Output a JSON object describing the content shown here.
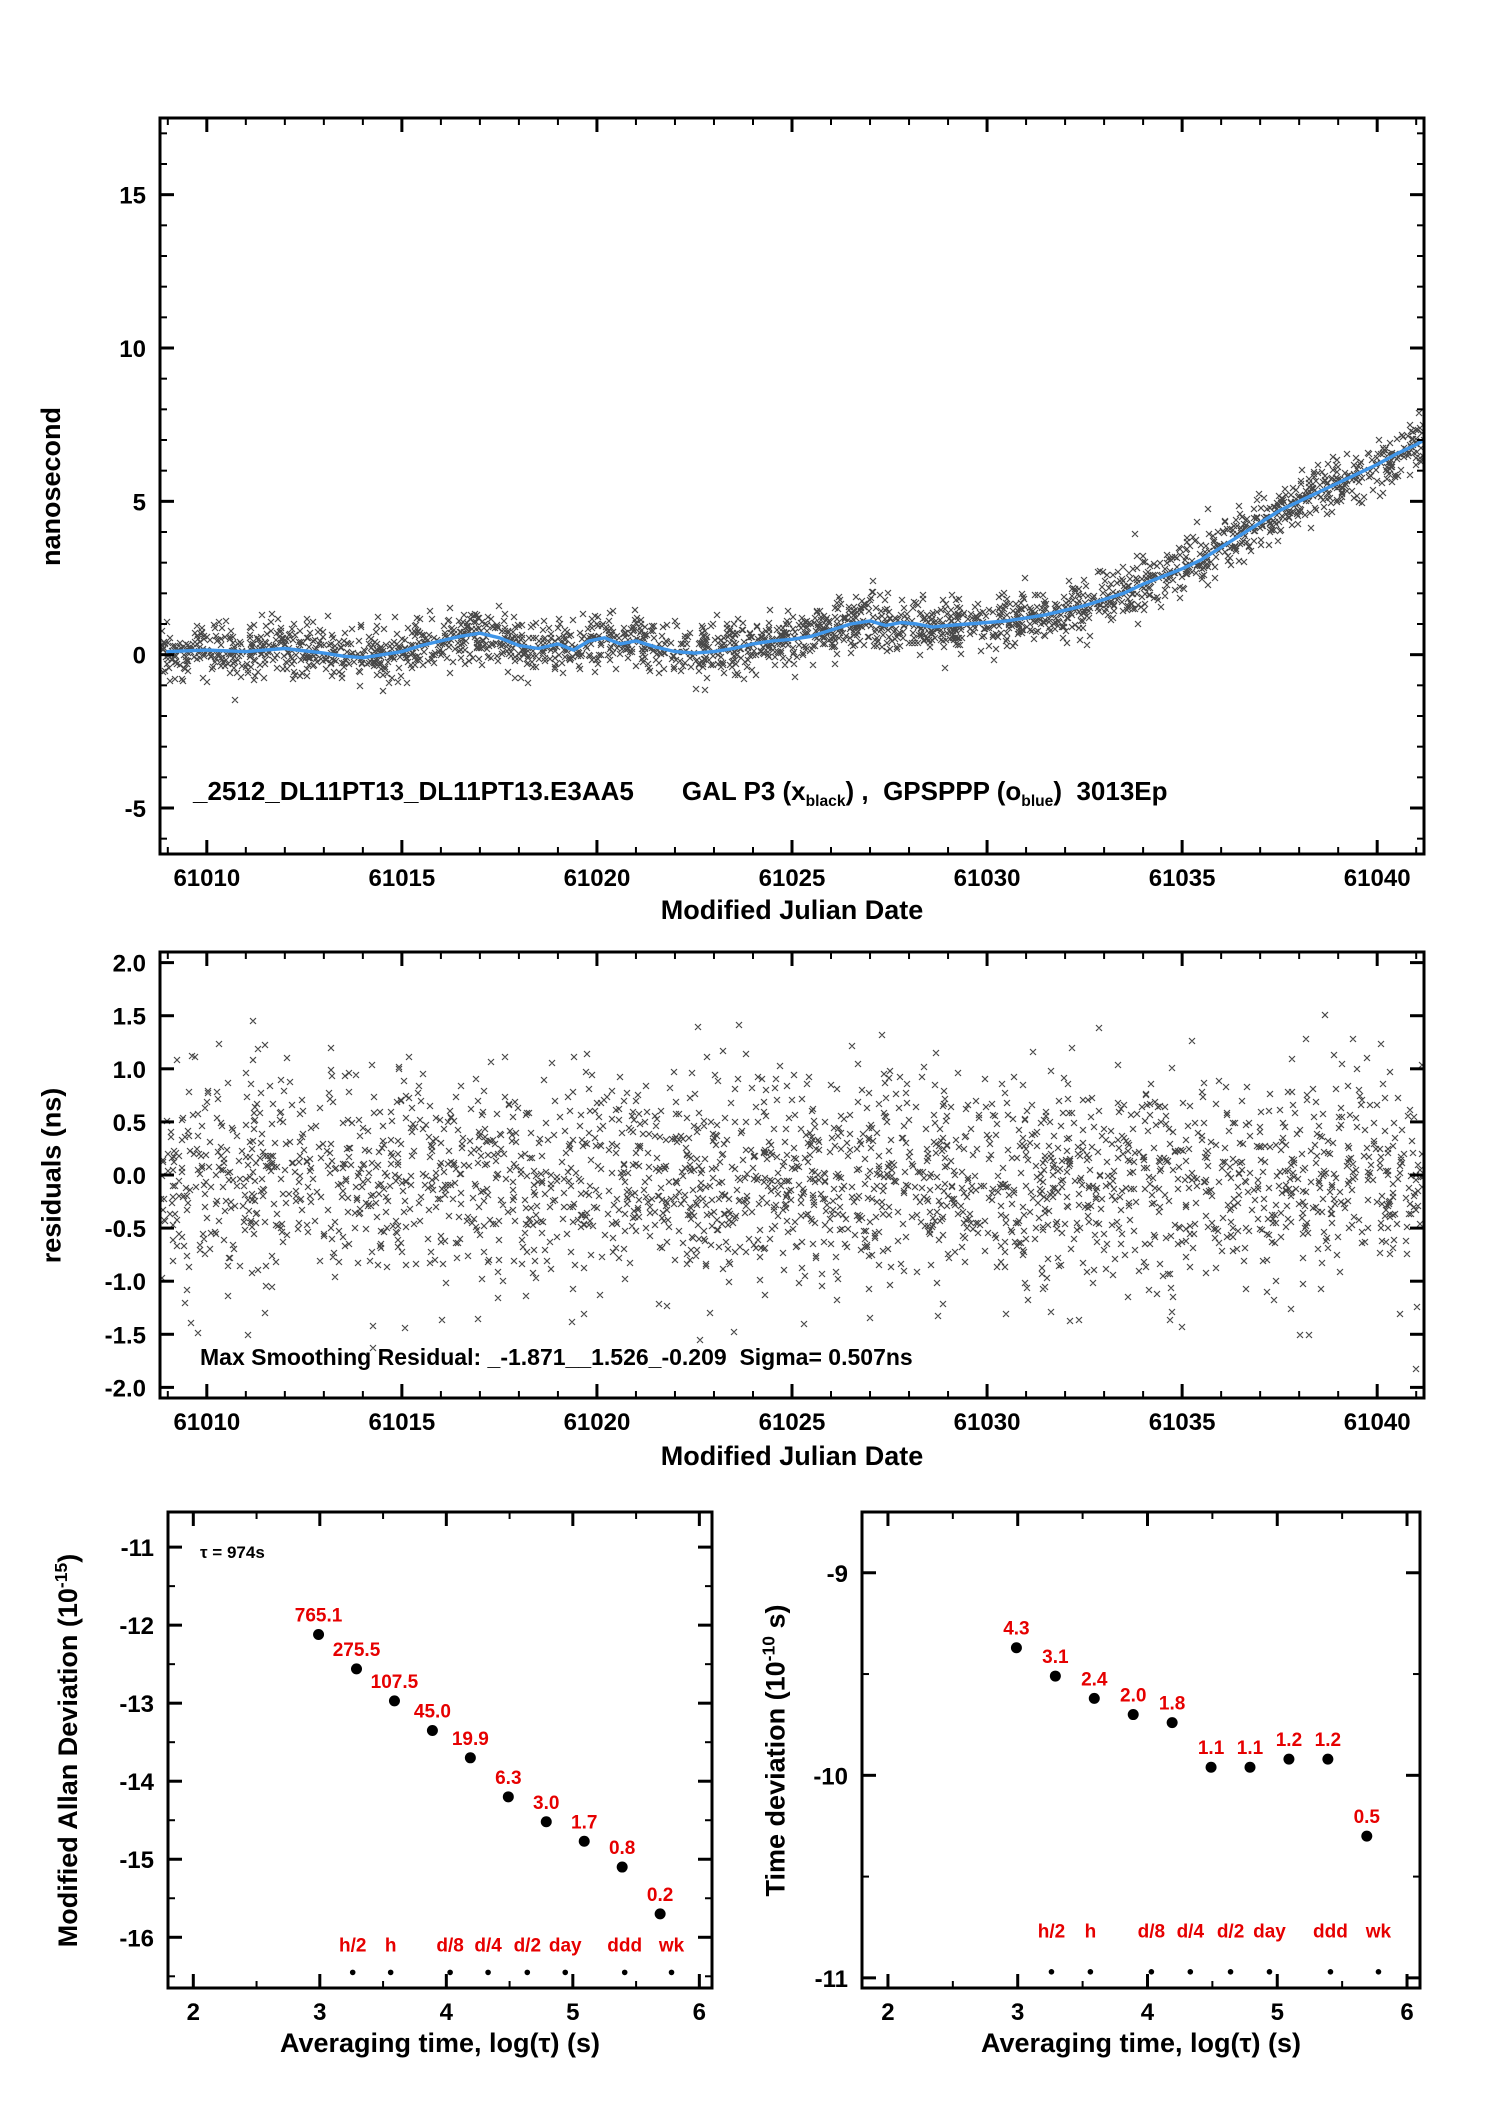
{
  "colors": {
    "scatter": "#1a1a1a",
    "smooth_line": "#3f95e8",
    "label_red": "#e60000",
    "axis": "#000000",
    "background": "#ffffff"
  },
  "panel1": {
    "xlabel": "Modified Julian Date",
    "ylabel": "nanosecond",
    "annotation": {
      "file": "_2512_DL11PT13_DL11PT13.E3AA5",
      "s1": "GAL P3 (x",
      "s1sub": "black",
      "s2": ") ,  GPSPPP (o",
      "s2sub": "blue",
      "s3": ")  3013Ep"
    }
  },
  "panel2": {
    "xlabel": "Modified Julian Date",
    "ylabel": "residuals (ns)",
    "annotation": "Max Smoothing Residual: _-1.871__1.526_-0.209  Sigma= 0.507ns"
  },
  "panel3": {
    "xlabel": "Averaging time, log(τ) (s)",
    "ylabel_pre": "Modified Allan Deviation (10",
    "ylabel_sup": "-15",
    "ylabel_post": ")",
    "tau_note": "τ = 974s"
  },
  "panel4": {
    "xlabel": "Averaging time, log(τ) (s)",
    "ylabel_pre": "Time deviation (10",
    "ylabel_sup": "-10",
    "ylabel_post": " s)"
  },
  "chart_data": [
    {
      "id": "p1",
      "type": "scatter",
      "title": "_2512_DL11PT13_DL11PT13.E3AA5  GAL P3 (x black) , GPSPPP (o blue)  3013Ep",
      "xlabel": "Modified Julian Date",
      "ylabel": "nanosecond",
      "xlim": [
        61008.8,
        61041.2
      ],
      "ylim": [
        -6.5,
        17.5
      ],
      "xticks": {
        "v": [
          61010,
          61015,
          61020,
          61025,
          61030,
          61035,
          61040
        ],
        "l": [
          "61010",
          "61015",
          "61020",
          "61025",
          "61030",
          "61035",
          "61040"
        ]
      },
      "yticks": {
        "v": [
          -5,
          0,
          5,
          10,
          15
        ],
        "l": [
          "-5",
          "0",
          "5",
          "10",
          "15"
        ]
      },
      "x_minor": 1,
      "y_minor": 1,
      "grid": false,
      "series": [
        {
          "name": "GAL P3 (x black)",
          "kind": "noisy-scatter",
          "marker": "x",
          "n": 2300,
          "sigma": 0.45,
          "seed": 42
        },
        {
          "name": "GPSPPP (o blue) smoothed",
          "kind": "smooth-line",
          "x": [
            61009,
            61010,
            61011,
            61012,
            61013,
            61013.5,
            61014,
            61014.5,
            61015,
            61015.5,
            61016,
            61016.5,
            61017,
            61017.5,
            61018,
            61018.5,
            61019,
            61019.4,
            61019.8,
            61020.2,
            61020.6,
            61021,
            61021.5,
            61022,
            61022.5,
            61023,
            61023.5,
            61024,
            61024.5,
            61025,
            61025.5,
            61026,
            61026.5,
            61027,
            61027.4,
            61027.8,
            61028.2,
            61028.6,
            61029,
            61029.5,
            61030,
            61030.5,
            61031,
            61031.5,
            61032,
            61032.5,
            61033,
            61033.5,
            61034,
            61034.5,
            61035,
            61035.5,
            61036,
            61036.5,
            61037,
            61037.5,
            61038,
            61038.5,
            61039,
            61039.5,
            61040,
            61040.5,
            61041,
            61041.2
          ],
          "y": [
            0.1,
            0.15,
            0.1,
            0.2,
            0.05,
            -0.05,
            -0.1,
            0.0,
            0.1,
            0.3,
            0.45,
            0.6,
            0.7,
            0.55,
            0.3,
            0.2,
            0.35,
            0.15,
            0.45,
            0.55,
            0.35,
            0.45,
            0.25,
            0.1,
            0.05,
            0.1,
            0.2,
            0.35,
            0.45,
            0.5,
            0.6,
            0.8,
            1.0,
            1.1,
            0.95,
            1.05,
            1.0,
            0.9,
            0.95,
            1.0,
            1.05,
            1.1,
            1.2,
            1.3,
            1.45,
            1.6,
            1.8,
            2.0,
            2.3,
            2.55,
            2.8,
            3.1,
            3.5,
            3.9,
            4.3,
            4.7,
            5.0,
            5.3,
            5.6,
            5.9,
            6.2,
            6.55,
            6.85,
            7.0
          ]
        }
      ]
    },
    {
      "id": "p2",
      "type": "scatter",
      "title": "Smoothing residuals",
      "xlabel": "Modified Julian Date",
      "ylabel": "residuals (ns)",
      "xlim": [
        61008.8,
        61041.2
      ],
      "ylim": [
        -2.1,
        2.1
      ],
      "xticks": {
        "v": [
          61010,
          61015,
          61020,
          61025,
          61030,
          61035,
          61040
        ],
        "l": [
          "61010",
          "61015",
          "61020",
          "61025",
          "61030",
          "61035",
          "61040"
        ]
      },
      "yticks": {
        "v": [
          -2,
          -1.5,
          -1,
          -0.5,
          0,
          0.5,
          1,
          1.5,
          2
        ],
        "l": [
          "-2.0",
          "-1.5",
          "-1.0",
          "-0.5",
          "0.0",
          "0.5",
          "1.0",
          "1.5",
          "2.0"
        ]
      },
      "x_minor": 1,
      "grid": false,
      "series": [
        {
          "name": "residuals",
          "kind": "noise-scatter",
          "marker": "x",
          "n": 2400,
          "mean": -0.05,
          "sigma": 0.507,
          "min": -1.871,
          "max": 1.526,
          "seed": 77
        }
      ],
      "stats": {
        "min_residual": -1.871,
        "max_residual": 1.526,
        "last_residual": -0.209,
        "sigma_ns": 0.507
      }
    },
    {
      "id": "p3",
      "type": "scatter",
      "title": "Modified Allan Deviation",
      "xlabel": "Averaging time, log(τ) (s)",
      "ylabel": "Modified Allan Deviation (10^-15)",
      "tau0_note": "τ = 974s",
      "xlim": [
        1.8,
        6.1
      ],
      "ylim": [
        -16.65,
        -10.55
      ],
      "xticks": {
        "v": [
          2,
          3,
          4,
          5,
          6
        ],
        "l": [
          "2",
          "3",
          "4",
          "5",
          "6"
        ]
      },
      "yticks": {
        "v": [
          -11,
          -12,
          -13,
          -14,
          -15,
          -16
        ],
        "l": [
          "-11",
          "-12",
          "-13",
          "-14",
          "-15",
          "-16"
        ]
      },
      "x_minor": 0.5,
      "y_minor": 0.5,
      "grid": false,
      "points": {
        "log_tau": [
          2.99,
          3.29,
          3.59,
          3.89,
          4.19,
          4.49,
          4.79,
          5.09,
          5.39,
          5.69
        ],
        "log_dev": [
          -12.12,
          -12.56,
          -12.97,
          -13.35,
          -13.7,
          -14.2,
          -14.52,
          -14.77,
          -15.1,
          -15.7
        ],
        "labels": [
          "765.1",
          "275.5",
          "107.5",
          "45.0",
          "19.9",
          "6.3",
          "3.0",
          "1.7",
          "0.8",
          "0.2"
        ],
        "values_1e15": [
          765.1,
          275.5,
          107.5,
          45.0,
          19.9,
          6.3,
          3.0,
          1.7,
          0.8,
          0.2
        ]
      },
      "time_marks": {
        "labels": [
          "h/2",
          "h",
          "d/8",
          "d/4",
          "d/2",
          "day",
          "ddd",
          "wk"
        ],
        "log_tau": [
          3.26,
          3.56,
          4.03,
          4.33,
          4.64,
          4.94,
          5.41,
          5.78
        ],
        "dot_y": -16.45,
        "label_y": -16.18
      }
    },
    {
      "id": "p4",
      "type": "scatter",
      "title": "Time deviation",
      "xlabel": "Averaging time, log(τ) (s)",
      "ylabel": "Time deviation (10^-10 s)",
      "xlim": [
        1.8,
        6.1
      ],
      "ylim": [
        -11.05,
        -8.7
      ],
      "xticks": {
        "v": [
          2,
          3,
          4,
          5,
          6
        ],
        "l": [
          "2",
          "3",
          "4",
          "5",
          "6"
        ]
      },
      "yticks": {
        "v": [
          -9,
          -10,
          -11
        ],
        "l": [
          "-9",
          "-10",
          "-11"
        ]
      },
      "x_minor": 0.5,
      "y_minor": 0.5,
      "grid": false,
      "points": {
        "log_tau": [
          2.99,
          3.29,
          3.59,
          3.89,
          4.19,
          4.49,
          4.79,
          5.09,
          5.39,
          5.69
        ],
        "log_dev": [
          -9.37,
          -9.51,
          -9.62,
          -9.7,
          -9.74,
          -9.96,
          -9.96,
          -9.92,
          -9.92,
          -10.3
        ],
        "labels": [
          "4.3",
          "3.1",
          "2.4",
          "2.0",
          "1.8",
          "1.1",
          "1.1",
          "1.2",
          "1.2",
          "0.5"
        ],
        "values_1e10": [
          4.3,
          3.1,
          2.4,
          2.0,
          1.8,
          1.1,
          1.1,
          1.2,
          1.2,
          0.5
        ]
      },
      "time_marks": {
        "labels": [
          "h/2",
          "h",
          "d/8",
          "d/4",
          "d/2",
          "day",
          "ddd",
          "wk"
        ],
        "log_tau": [
          3.26,
          3.56,
          4.03,
          4.33,
          4.64,
          4.94,
          5.41,
          5.78
        ],
        "dot_y": -10.97,
        "label_y": -10.8
      }
    }
  ]
}
